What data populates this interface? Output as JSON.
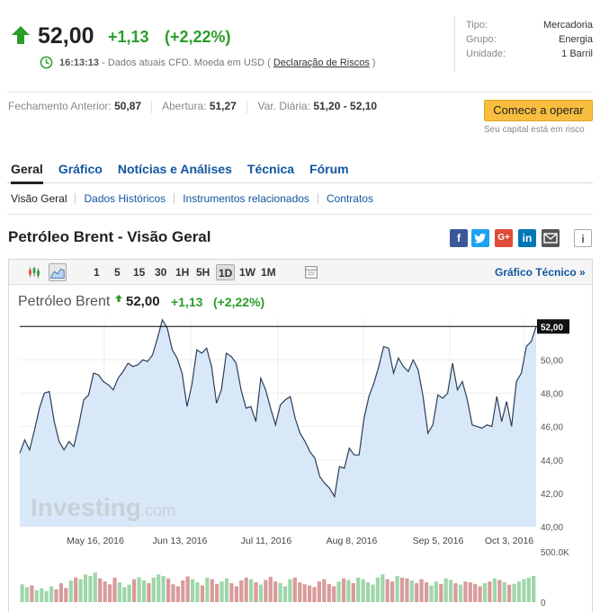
{
  "quote": {
    "price": "52,00",
    "change": "+1,13",
    "change_pct": "(+2,22%)",
    "time": "16:13:13",
    "timeline_text": " - Dados atuais CFD. Moeda em USD ( ",
    "risk_link": "Declaração de Riscos",
    "timeline_end": " )",
    "up_color": "#2a9d2a"
  },
  "info": [
    {
      "label": "Tipo:",
      "value": "Mercadoria"
    },
    {
      "label": "Grupo:",
      "value": "Energia"
    },
    {
      "label": "Unidade:",
      "value": "1 Barril"
    }
  ],
  "stats": {
    "prev_close_label": "Fechamento Anterior:",
    "prev_close": "50,87",
    "open_label": "Abertura:",
    "open": "51,27",
    "range_label": "Var. Diária:",
    "range": "51,20 - 52,10"
  },
  "trade": {
    "button": "Comece a operar",
    "risk": "Seu capital está em risco",
    "color": "#f9be3f"
  },
  "tabs": [
    "Geral",
    "Gráfico",
    "Notícias e Análises",
    "Técnica",
    "Fórum"
  ],
  "subtabs": [
    "Visão Geral",
    "Dados Históricos",
    "Instrumentos relacionados",
    "Contratos"
  ],
  "page_title": "Petróleo Brent - Visão Geral",
  "social": {
    "google_plus": "G+",
    "linkedin": "in",
    "info": "i"
  },
  "toolbar": {
    "periods": [
      "1",
      "5",
      "15",
      "30",
      "1H",
      "5H",
      "1D",
      "1W",
      "1M"
    ],
    "selected": "1D",
    "tech_link": "Gráfico Técnico »"
  },
  "chart_header": {
    "title": "Petróleo Brent",
    "price": "52,00",
    "change": "+1,13",
    "change_pct": "(+2,22%)"
  },
  "chart_data": {
    "type": "area",
    "watermark": "Investing.com",
    "x_labels": [
      "May 16, 2016",
      "Jun 13, 2016",
      "Jul 11, 2016",
      "Aug 8, 2016",
      "Sep 5, 2016",
      "Oct 3, 2016"
    ],
    "y_ticks": [
      "40,00",
      "42,00",
      "44,00",
      "46,00",
      "48,00",
      "50,00"
    ],
    "ylim": [
      40,
      52.5
    ],
    "current_label": "52,00",
    "current_value": 52.0,
    "values": [
      44.4,
      45.2,
      44.6,
      45.8,
      47.1,
      48.0,
      48.1,
      46.3,
      45.1,
      44.6,
      45.1,
      44.8,
      46.1,
      47.6,
      47.9,
      49.2,
      49.1,
      48.7,
      48.5,
      48.2,
      48.9,
      49.3,
      49.8,
      49.6,
      49.7,
      50.0,
      49.9,
      50.3,
      51.3,
      52.4,
      51.9,
      50.6,
      50.1,
      49.2,
      47.2,
      48.5,
      50.6,
      50.4,
      50.7,
      49.6,
      47.4,
      48.2,
      50.4,
      50.2,
      49.8,
      48.2,
      47.1,
      47.2,
      46.3,
      48.9,
      48.2,
      47.1,
      46.1,
      47.3,
      47.6,
      47.8,
      46.5,
      45.6,
      45.1,
      44.5,
      44.1,
      43.0,
      42.6,
      42.3,
      41.8,
      43.6,
      43.5,
      44.7,
      44.3,
      44.3,
      46.5,
      47.8,
      48.6,
      49.6,
      50.8,
      50.7,
      49.2,
      50.1,
      49.6,
      49.3,
      50.0,
      49.4,
      47.8,
      45.6,
      46.1,
      47.9,
      47.7,
      48.0,
      49.8,
      48.2,
      48.7,
      47.6,
      46.1,
      46.0,
      45.9,
      46.1,
      46.0,
      47.8,
      46.3,
      47.5,
      46.0,
      48.7,
      49.2,
      50.8,
      51.1,
      52.0
    ],
    "volume_label": "500.0K",
    "volume_zero": "0",
    "volumes": [
      0.45,
      0.38,
      0.42,
      0.3,
      0.35,
      0.28,
      0.4,
      0.32,
      0.48,
      0.36,
      0.55,
      0.62,
      0.58,
      0.7,
      0.66,
      0.75,
      0.6,
      0.52,
      0.45,
      0.62,
      0.5,
      0.38,
      0.44,
      0.58,
      0.63,
      0.55,
      0.48,
      0.62,
      0.7,
      0.66,
      0.6,
      0.45,
      0.4,
      0.55,
      0.65,
      0.58,
      0.5,
      0.42,
      0.62,
      0.58,
      0.46,
      0.52,
      0.6,
      0.48,
      0.4,
      0.55,
      0.62,
      0.58,
      0.5,
      0.44,
      0.56,
      0.64,
      0.52,
      0.48,
      0.4,
      0.58,
      0.62,
      0.5,
      0.45,
      0.42,
      0.38,
      0.52,
      0.58,
      0.46,
      0.4,
      0.52,
      0.6,
      0.56,
      0.48,
      0.62,
      0.58,
      0.5,
      0.44,
      0.62,
      0.7,
      0.58,
      0.52,
      0.66,
      0.62,
      0.6,
      0.55,
      0.48,
      0.58,
      0.5,
      0.42,
      0.52,
      0.46,
      0.6,
      0.56,
      0.48,
      0.44,
      0.52,
      0.5,
      0.46,
      0.4,
      0.48,
      0.52,
      0.6,
      0.56,
      0.5,
      0.44,
      0.46,
      0.52,
      0.58,
      0.62,
      0.66
    ]
  }
}
